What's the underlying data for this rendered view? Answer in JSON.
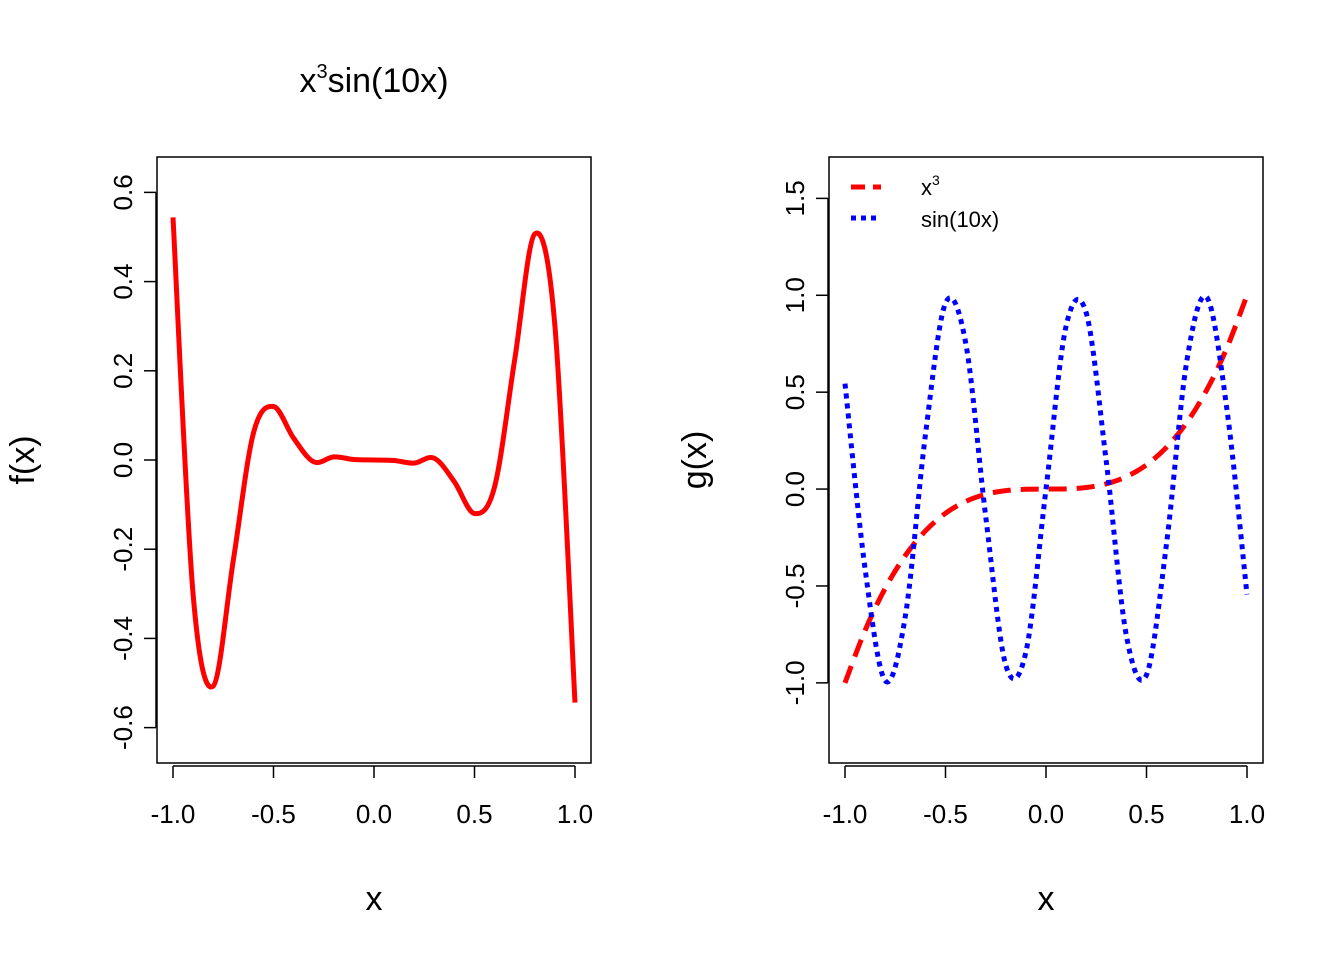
{
  "chart_data": [
    {
      "type": "line",
      "title_base": "x",
      "title_sup": "3",
      "title_rest": "sin(10x)",
      "xlabel": "x",
      "ylabel": "f(x)",
      "xlim": [
        -1.0,
        1.0
      ],
      "ylim": [
        -0.63,
        0.63
      ],
      "xticks": [
        "-1.0",
        "-0.5",
        "0.0",
        "0.5",
        "1.0"
      ],
      "yticks": [
        "-0.6",
        "-0.4",
        "-0.2",
        "0.0",
        "0.2",
        "0.4",
        "0.6"
      ],
      "grid": false,
      "series": [
        {
          "color": "#ff0000",
          "style": "solid",
          "x": [
            -1.0,
            -0.9,
            -0.8,
            -0.7,
            -0.6,
            -0.5,
            -0.4,
            -0.3,
            -0.2,
            -0.1,
            0.0,
            0.1,
            0.2,
            0.3,
            0.4,
            0.5,
            0.6,
            0.7,
            0.8,
            0.9,
            1.0
          ],
          "y": [
            0.544,
            -0.301,
            -0.507,
            -0.225,
            0.06,
            0.12,
            0.049,
            -0.004,
            0.007,
            0.001,
            0.0,
            -0.001,
            -0.007,
            0.004,
            -0.049,
            -0.12,
            -0.06,
            0.225,
            0.507,
            0.301,
            -0.544
          ]
        }
      ]
    },
    {
      "type": "line",
      "xlabel": "x",
      "ylabel": "g(x)",
      "xlim": [
        -1.0,
        1.0
      ],
      "ylim": [
        -1.3,
        1.6
      ],
      "xticks": [
        "-1.0",
        "-0.5",
        "0.0",
        "0.5",
        "1.0"
      ],
      "yticks": [
        "-1.0",
        "-0.5",
        "0.0",
        "0.5",
        "1.0",
        "1.5"
      ],
      "grid": false,
      "legend_position": "top-left",
      "series": [
        {
          "name": "x",
          "name_sup": "3",
          "color": "#ff0000",
          "style": "dashed",
          "x": [
            -1.0,
            -0.9,
            -0.8,
            -0.7,
            -0.6,
            -0.5,
            -0.4,
            -0.3,
            -0.2,
            -0.1,
            0.0,
            0.1,
            0.2,
            0.3,
            0.4,
            0.5,
            0.6,
            0.7,
            0.8,
            0.9,
            1.0
          ],
          "y": [
            -1.0,
            -0.729,
            -0.512,
            -0.343,
            -0.216,
            -0.125,
            -0.064,
            -0.027,
            -0.008,
            -0.001,
            0.0,
            0.001,
            0.008,
            0.027,
            0.064,
            0.125,
            0.216,
            0.343,
            0.512,
            0.729,
            1.0
          ]
        },
        {
          "name": "sin(10x)",
          "color": "#0000ff",
          "style": "dotted",
          "x": [
            -1.0,
            -0.9,
            -0.8,
            -0.7,
            -0.6,
            -0.5,
            -0.4,
            -0.3,
            -0.2,
            -0.1,
            0.0,
            0.1,
            0.2,
            0.3,
            0.4,
            0.5,
            0.6,
            0.7,
            0.8,
            0.9,
            1.0
          ],
          "y": [
            0.544,
            -0.412,
            -0.989,
            -0.657,
            0.279,
            0.959,
            0.757,
            -0.141,
            -0.909,
            -0.841,
            0.0,
            0.841,
            0.909,
            0.141,
            -0.757,
            -0.959,
            -0.279,
            0.657,
            0.989,
            0.412,
            -0.544
          ]
        }
      ]
    }
  ]
}
